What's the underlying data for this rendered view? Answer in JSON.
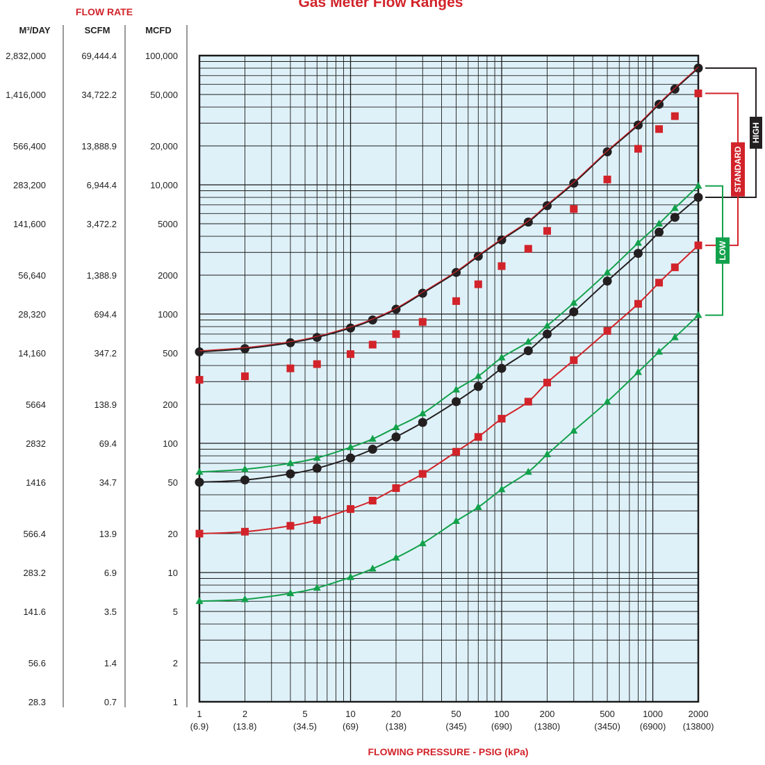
{
  "title": "Gas Meter Flow Ranges",
  "flow_rate_label": "FLOW RATE",
  "columns": [
    {
      "header": "M³/DAY",
      "values": [
        "2,832,000",
        "1,416,000",
        "566,400",
        "283,200",
        "141,600",
        "56,640",
        "28,320",
        "14,160",
        "5664",
        "2832",
        "1416",
        "566.4",
        "283.2",
        "141.6",
        "56.6",
        "28.3"
      ]
    },
    {
      "header": "SCFM",
      "values": [
        "69,444.4",
        "34,722.2",
        "13,888.9",
        "6,944.4",
        "3,472.2",
        "1,388.9",
        "694.4",
        "347.2",
        "138.9",
        "69.4",
        "34.7",
        "13.9",
        "6.9",
        "3.5",
        "1.4",
        "0.7"
      ]
    },
    {
      "header": "MCFD",
      "values": [
        "100,000",
        "50,000",
        "20,000",
        "10,000",
        "5000",
        "2000",
        "1000",
        "500",
        "200",
        "100",
        "50",
        "20",
        "10",
        "5",
        "2",
        "1"
      ]
    }
  ],
  "xlabel": "FLOWING PRESSURE - PSIG  (kPa)",
  "x_ticks": [
    {
      "psig": "1",
      "kpa": "(6.9)"
    },
    {
      "psig": "2",
      "kpa": "(13.8)"
    },
    {
      "psig": "5",
      "kpa": "(34.5)"
    },
    {
      "psig": "10",
      "kpa": "(69)"
    },
    {
      "psig": "20",
      "kpa": "(138)"
    },
    {
      "psig": "50",
      "kpa": "(345)"
    },
    {
      "psig": "100",
      "kpa": "(690)"
    },
    {
      "psig": "200",
      "kpa": "(1380)"
    },
    {
      "psig": "500",
      "kpa": "(3450)"
    },
    {
      "psig": "1000",
      "kpa": "(6900)"
    },
    {
      "psig": "2000",
      "kpa": "(13800)"
    }
  ],
  "bands": [
    {
      "label": "HIGH",
      "color": "#231f20"
    },
    {
      "label": "STANDARD",
      "color": "#d2232a"
    },
    {
      "label": "LOW",
      "color": "#12a14b"
    }
  ],
  "colors": {
    "plot_bg": "#dff1f8",
    "grid": "#1a1a1a",
    "black_series": "#231f20",
    "red_series": "#d2232a",
    "green_series": "#12a14b",
    "title_red": "#d2232a"
  },
  "chart_data": {
    "type": "line",
    "x_scale": "log",
    "y_scale": "log",
    "xlim": [
      1,
      2000
    ],
    "ylim": [
      1,
      100000
    ],
    "x_unit": "PSIG",
    "y_unit": "MCFD",
    "series": [
      {
        "color": "#231f20",
        "marker": "circle",
        "line": true,
        "x": [
          1,
          2,
          4,
          6,
          10,
          14,
          20,
          30,
          50,
          70,
          100,
          150,
          200,
          300,
          500,
          800,
          1100,
          1400,
          2000
        ],
        "y": [
          510,
          540,
          600,
          660,
          780,
          900,
          1090,
          1450,
          2100,
          2800,
          3750,
          5150,
          6900,
          10300,
          18000,
          29000,
          42000,
          55000,
          80000
        ]
      },
      {
        "color": "#d2232a",
        "marker": "square",
        "line": false,
        "x": [
          1,
          2,
          4,
          6,
          10,
          14,
          20,
          30,
          50,
          70,
          100,
          150,
          200,
          300,
          500,
          800,
          1100,
          1400,
          2000
        ],
        "y": [
          310,
          330,
          380,
          410,
          490,
          580,
          700,
          870,
          1260,
          1700,
          2350,
          3200,
          4400,
          6500,
          11000,
          19000,
          27000,
          34000,
          51000
        ]
      },
      {
        "color": "#12a14b",
        "marker": "triangle",
        "line": true,
        "x": [
          1,
          2,
          4,
          6,
          10,
          14,
          20,
          30,
          50,
          70,
          100,
          150,
          200,
          300,
          500,
          800,
          1100,
          1400,
          2000
        ],
        "y": [
          60,
          63,
          70,
          77,
          93,
          108,
          133,
          170,
          260,
          330,
          460,
          610,
          810,
          1220,
          2100,
          3550,
          5000,
          6600,
          9800
        ]
      },
      {
        "color": "#231f20",
        "marker": "circle",
        "line": true,
        "x": [
          1,
          2,
          4,
          6,
          10,
          14,
          20,
          30,
          50,
          70,
          100,
          150,
          200,
          300,
          500,
          800,
          1100,
          1400,
          2000
        ],
        "y": [
          50,
          52,
          58,
          64,
          77,
          90,
          112,
          145,
          210,
          275,
          380,
          520,
          700,
          1040,
          1800,
          2950,
          4300,
          5600,
          8000
        ]
      },
      {
        "color": "#d2232a",
        "marker": "square",
        "line": true,
        "x": [
          1,
          2,
          4,
          6,
          10,
          14,
          20,
          30,
          50,
          70,
          100,
          150,
          200,
          300,
          500,
          800,
          1100,
          1400,
          2000
        ],
        "y": [
          20,
          20.7,
          23,
          25.5,
          31,
          36,
          45,
          58,
          86,
          112,
          155,
          210,
          295,
          440,
          740,
          1200,
          1750,
          2300,
          3400
        ]
      },
      {
        "color": "#12a14b",
        "marker": "triangle",
        "line": true,
        "x": [
          1,
          2,
          4,
          6,
          10,
          14,
          20,
          30,
          50,
          70,
          100,
          150,
          200,
          300,
          500,
          800,
          1100,
          1400,
          2000
        ],
        "y": [
          6,
          6.2,
          6.9,
          7.6,
          9.2,
          10.7,
          13,
          16.8,
          25,
          32,
          44,
          60,
          82,
          125,
          210,
          355,
          510,
          660,
          980
        ]
      }
    ]
  }
}
